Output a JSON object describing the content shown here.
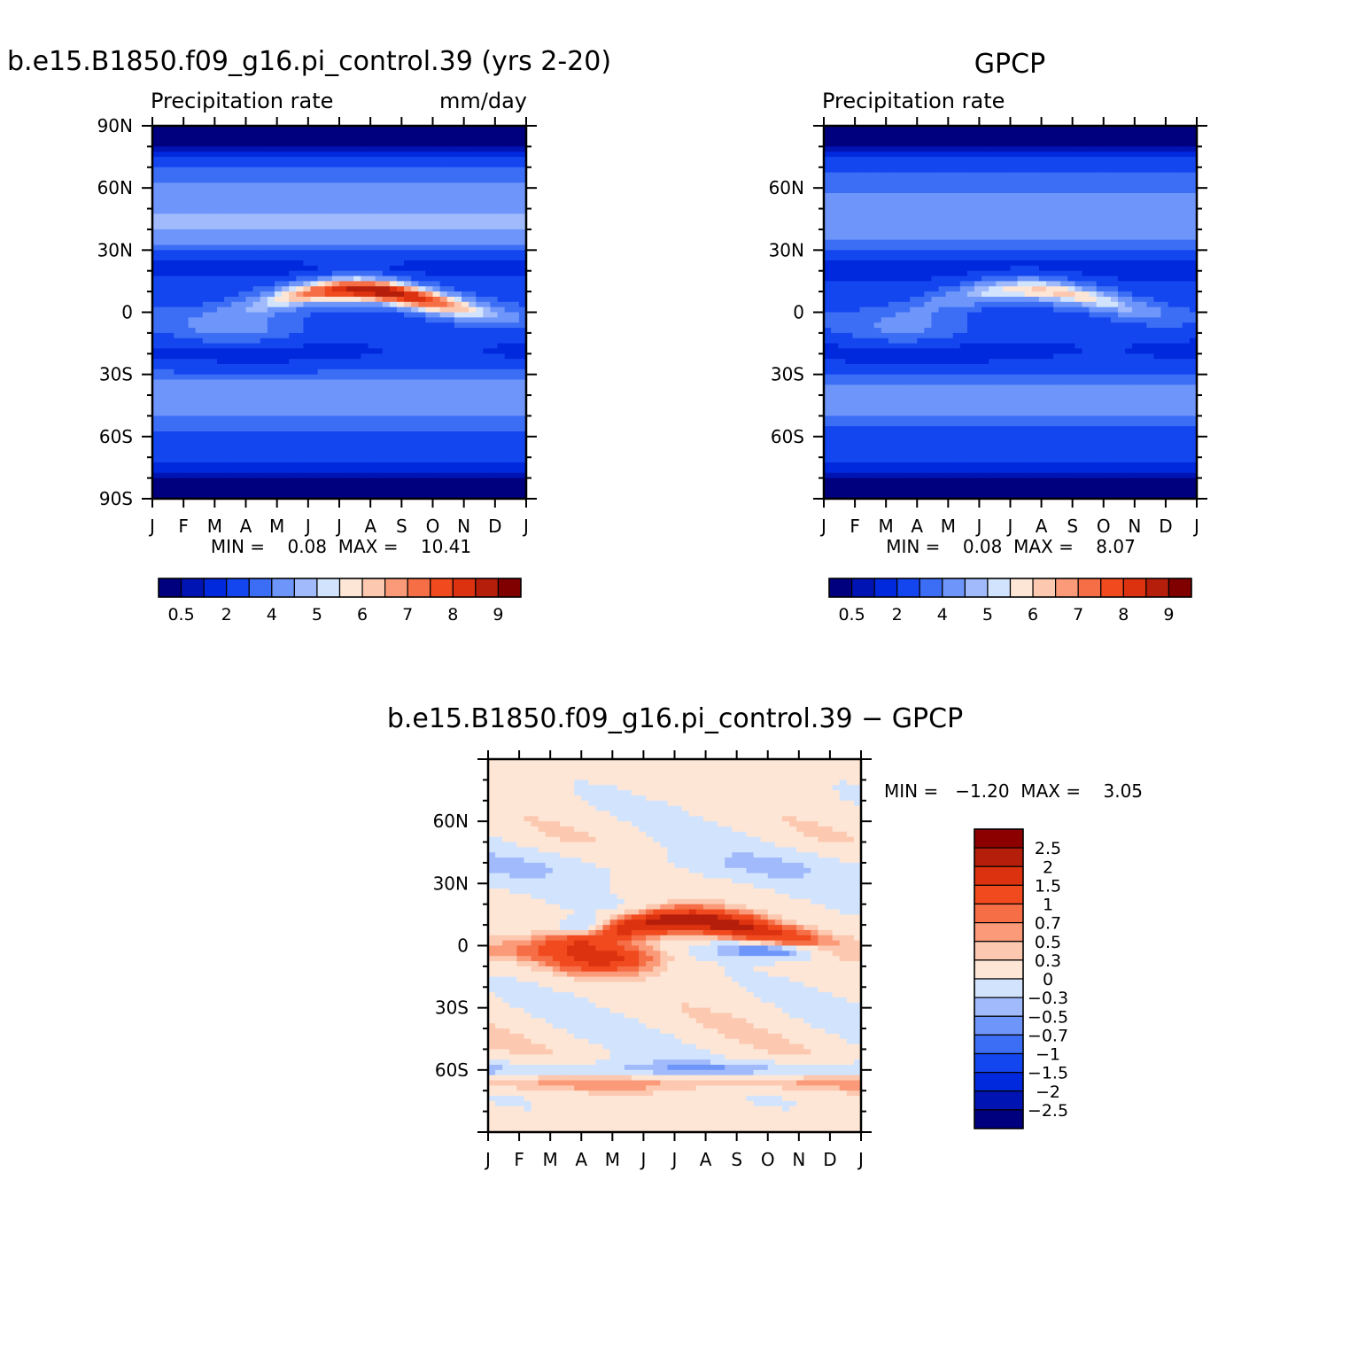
{
  "palettes": {
    "blue_red_16": [
      "#00007f",
      "#0014b4",
      "#0028dc",
      "#1446f0",
      "#3c6ef5",
      "#6e96fa",
      "#a0bafc",
      "#d2e4fd",
      "#fde6d6",
      "#fcc8b0",
      "#fa9a78",
      "#f56e46",
      "#f04a1e",
      "#dc3210",
      "#b41e0a",
      "#800000"
    ],
    "diff_16": [
      "#00007f",
      "#0014b4",
      "#0028dc",
      "#1446f0",
      "#3c6ef5",
      "#6e96fa",
      "#a0bafc",
      "#d2e4fd",
      "#fde6d6",
      "#fcc8b0",
      "#fa9a78",
      "#f56e46",
      "#f04a1e",
      "#dc3210",
      "#b41e0a",
      "#8c0000"
    ]
  },
  "chart_data": [
    {
      "id": "model",
      "type": "heatmap",
      "title": "b.e15.B1850.f09_g16.pi_control.39 (yrs 2-20)",
      "left_string": "Precipitation rate",
      "right_string": "mm/day",
      "x_tick_labels": [
        "J",
        "F",
        "M",
        "A",
        "M",
        "J",
        "J",
        "A",
        "S",
        "O",
        "N",
        "D",
        "J"
      ],
      "y_tick_labels": [
        "90N",
        "60N",
        "30N",
        "0",
        "30S",
        "60S",
        "90S"
      ],
      "y_tick_values": [
        90,
        60,
        30,
        0,
        -30,
        -60,
        -90
      ],
      "ylim": [
        -90,
        90
      ],
      "stats_text": "MIN =    0.08  MAX =    10.41",
      "colorbar_labels": [
        "0.5",
        "2",
        "4",
        "5",
        "6",
        "7",
        "8",
        "9"
      ],
      "colorbar_levels": [
        0.2,
        0.5,
        1,
        2,
        3,
        4,
        4.5,
        5,
        5.5,
        6,
        6.5,
        7,
        7.5,
        8,
        9
      ],
      "itcz_peak": 10.41,
      "field_min": 0.08
    },
    {
      "id": "obs",
      "type": "heatmap",
      "title": "GPCP",
      "left_string": "Precipitation rate",
      "right_string": "",
      "x_tick_labels": [
        "J",
        "F",
        "M",
        "A",
        "M",
        "J",
        "J",
        "A",
        "S",
        "O",
        "N",
        "D",
        "J"
      ],
      "y_tick_labels": [
        "60N",
        "30N",
        "0",
        "30S",
        "60S"
      ],
      "y_tick_values": [
        60,
        30,
        0,
        -30,
        -60
      ],
      "ylim": [
        -90,
        90
      ],
      "stats_text": "MIN =    0.08  MAX =    8.07",
      "colorbar_labels": [
        "0.5",
        "2",
        "4",
        "5",
        "6",
        "7",
        "8",
        "9"
      ],
      "colorbar_levels": [
        0.2,
        0.5,
        1,
        2,
        3,
        4,
        4.5,
        5,
        5.5,
        6,
        6.5,
        7,
        7.5,
        8,
        9
      ],
      "itcz_peak": 8.07,
      "field_min": 0.08
    },
    {
      "id": "diff",
      "type": "heatmap",
      "title": "b.e15.B1850.f09_g16.pi_control.39 − GPCP",
      "x_tick_labels": [
        "J",
        "F",
        "M",
        "A",
        "M",
        "J",
        "J",
        "A",
        "S",
        "O",
        "N",
        "D",
        "J"
      ],
      "y_tick_labels": [
        "60N",
        "30N",
        "0",
        "30S",
        "60S"
      ],
      "y_tick_values": [
        60,
        30,
        0,
        -30,
        -60
      ],
      "ylim": [
        -90,
        90
      ],
      "stats_text": "MIN =   −1.20  MAX =    3.05",
      "colorbar_labels": [
        "2.5",
        "2",
        "1.5",
        "1",
        "0.7",
        "0.5",
        "0.3",
        "0",
        "−0.3",
        "−0.5",
        "−0.7",
        "−1",
        "−1.5",
        "−2",
        "−2.5"
      ],
      "colorbar_levels": [
        -2.5,
        -2,
        -1.5,
        -1,
        -0.7,
        -0.5,
        -0.3,
        0,
        0.3,
        0.5,
        0.7,
        1,
        1.5,
        2,
        2.5
      ],
      "field_min": -1.2,
      "field_max": 3.05
    }
  ]
}
